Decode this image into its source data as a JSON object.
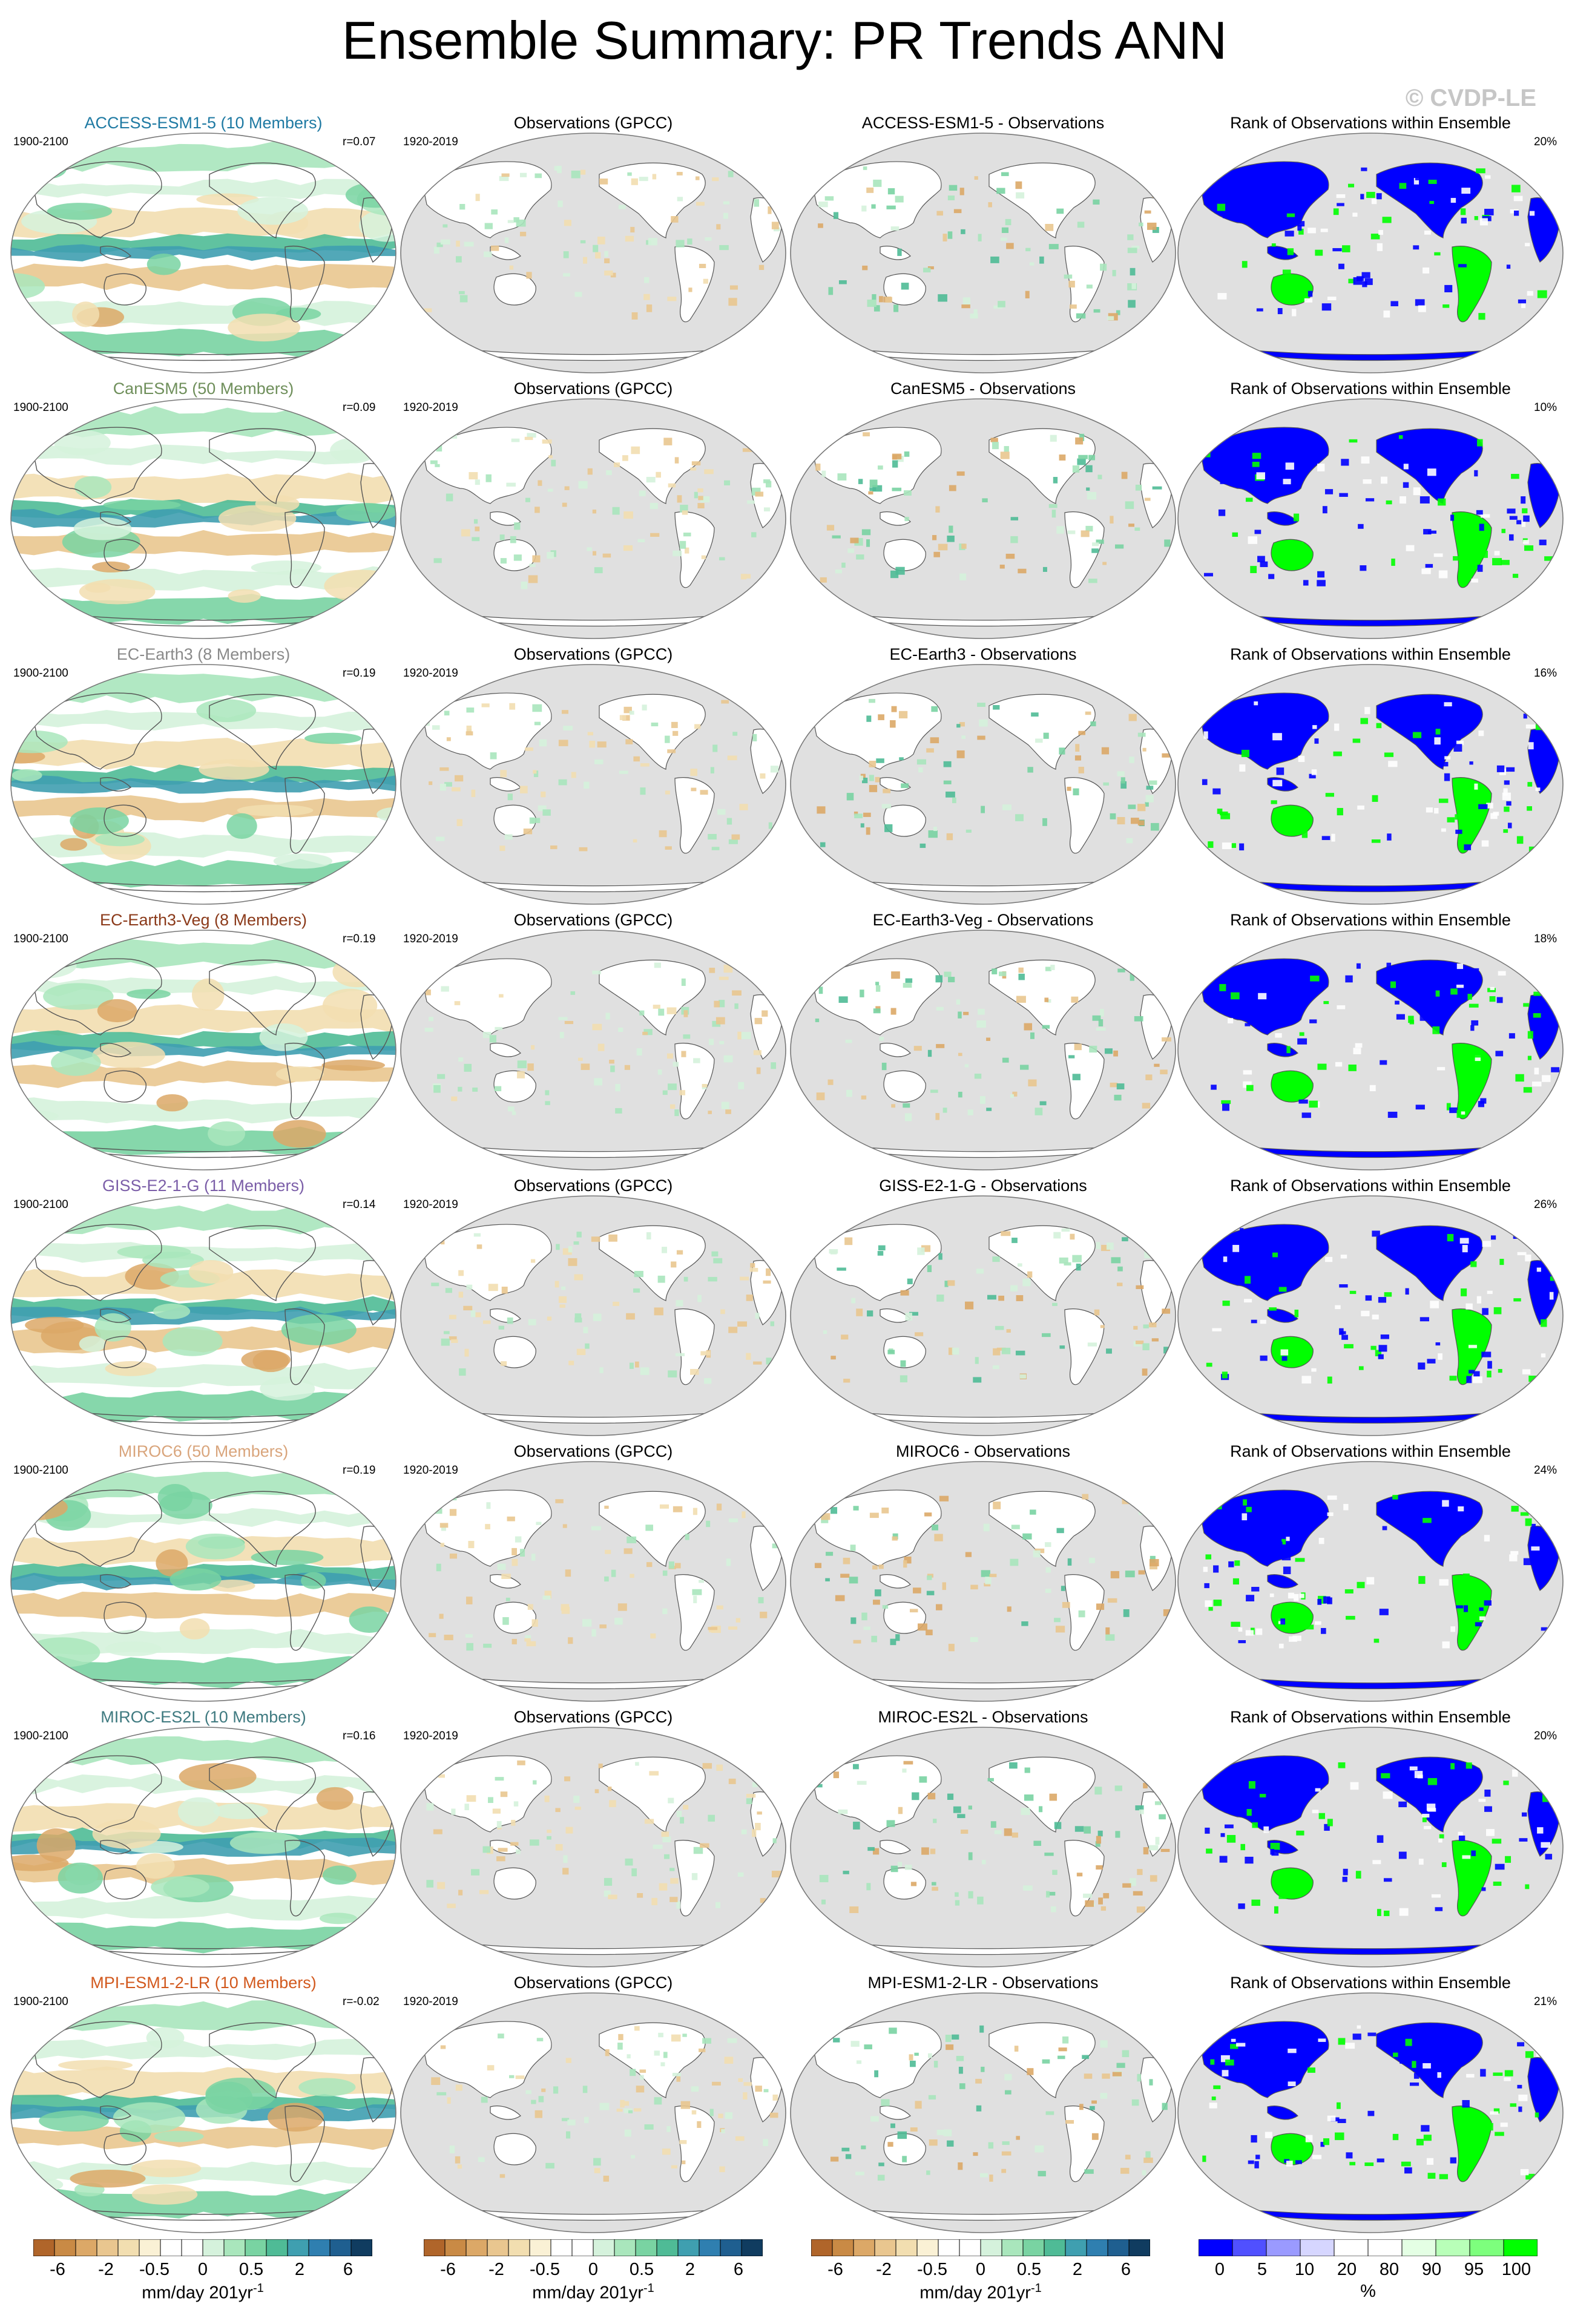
{
  "title": "Ensemble Summary: PR Trends ANN",
  "copyright": "© CVDP-LE",
  "chart_data": {
    "type": "heatmap",
    "column_titles": {
      "observations": "Observations (GPCC)",
      "rank": "Rank of Observations within Ensemble"
    },
    "rows": [
      {
        "model": "ACCESS-ESM1-5 (10 Members)",
        "model_color": "#1f7aa3",
        "diff_title": "ACCESS-ESM1-5 - Observations",
        "model_period": "1900-2100",
        "obs_period": "1920-2019",
        "r": "r=0.07",
        "rank_pct": "20%"
      },
      {
        "model": "CanESM5 (50 Members)",
        "model_color": "#6f8f5b",
        "diff_title": "CanESM5 - Observations",
        "model_period": "1900-2100",
        "obs_period": "1920-2019",
        "r": "r=0.09",
        "rank_pct": "10%"
      },
      {
        "model": "EC-Earth3 (8 Members)",
        "model_color": "#8a8a8a",
        "diff_title": "EC-Earth3 - Observations",
        "model_period": "1900-2100",
        "obs_period": "1920-2019",
        "r": "r=0.19",
        "rank_pct": "16%"
      },
      {
        "model": "EC-Earth3-Veg (8 Members)",
        "model_color": "#8b3a1a",
        "diff_title": "EC-Earth3-Veg - Observations",
        "model_period": "1900-2100",
        "obs_period": "1920-2019",
        "r": "r=0.19",
        "rank_pct": "18%"
      },
      {
        "model": "GISS-E2-1-G (11 Members)",
        "model_color": "#7b5ea8",
        "diff_title": "GISS-E2-1-G - Observations",
        "model_period": "1900-2100",
        "obs_period": "1920-2019",
        "r": "r=0.14",
        "rank_pct": "26%"
      },
      {
        "model": "MIROC6 (50 Members)",
        "model_color": "#d9a57c",
        "diff_title": "MIROC6 - Observations",
        "model_period": "1900-2100",
        "obs_period": "1920-2019",
        "r": "r=0.19",
        "rank_pct": "24%"
      },
      {
        "model": "MIROC-ES2L (10 Members)",
        "model_color": "#3f7a80",
        "diff_title": "MIROC-ES2L - Observations",
        "model_period": "1900-2100",
        "obs_period": "1920-2019",
        "r": "r=0.16",
        "rank_pct": "20%"
      },
      {
        "model": "MPI-ESM1-2-LR (10 Members)",
        "model_color": "#d2591e",
        "diff_title": "MPI-ESM1-2-LR - Observations",
        "model_period": "1900-2100",
        "obs_period": "1920-2019",
        "r": "r=-0.02",
        "rank_pct": "21%"
      }
    ],
    "trend_colorbar": {
      "label": "mm/day 201yr",
      "label_superscript": "-1",
      "obs_label": "mm/day 201yr",
      "ticks": [
        "-6",
        "-2",
        "-0.5",
        "0",
        "0.5",
        "2",
        "6"
      ],
      "colors": [
        "#b0652a",
        "#c98a45",
        "#dca867",
        "#e9c68f",
        "#f2deb0",
        "#faf1d5",
        "#ffffff",
        "#ffffff",
        "#d5f2dc",
        "#a9e6bc",
        "#79d3a2",
        "#4fbb96",
        "#3f9fb0",
        "#2f7fb0",
        "#1f5f90",
        "#103c60"
      ]
    },
    "rank_colorbar": {
      "label": "%",
      "ticks": [
        "0",
        "5",
        "10",
        "20",
        "80",
        "90",
        "95",
        "100"
      ],
      "colors": [
        "#0000ff",
        "#5050ff",
        "#9a9aff",
        "#d6d6ff",
        "#ffffff",
        "#ffffff",
        "#e4ffe4",
        "#b8ffb8",
        "#7dff7d",
        "#00ff00"
      ]
    }
  }
}
